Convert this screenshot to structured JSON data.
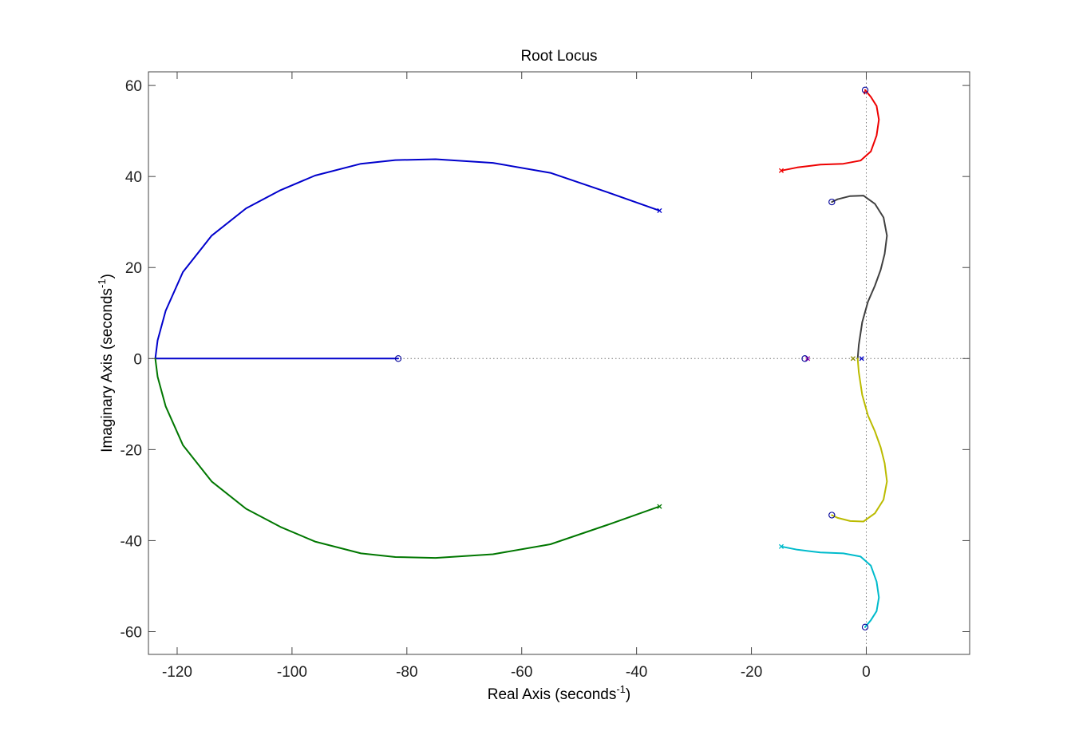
{
  "chart_data": {
    "type": "line",
    "title": "Root Locus",
    "xlabel": {
      "main": "Real Axis (seconds",
      "sup": "-1",
      "close": ")"
    },
    "ylabel": {
      "main": "Imaginary Axis (seconds",
      "sup": "-1",
      "close": ")"
    },
    "xlim": [
      -125,
      18
    ],
    "ylim": [
      -65,
      63
    ],
    "xticks": [
      -120,
      -100,
      -80,
      -60,
      -40,
      -20,
      0
    ],
    "yticks": [
      -60,
      -40,
      -20,
      0,
      20,
      40,
      60
    ],
    "xtick_labels": [
      "-120",
      "-100",
      "-80",
      "-60",
      "-40",
      "-20",
      "0"
    ],
    "ytick_labels": [
      "-60",
      "-40",
      "-20",
      "0",
      "20",
      "40",
      "60"
    ],
    "reference_lines": {
      "x0": true,
      "y0": true,
      "style": "dotted"
    },
    "series": [
      {
        "color": "#0000cc",
        "points": [
          [
            -36,
            32.5
          ],
          [
            -45,
            36.5
          ],
          [
            -55,
            40.8
          ],
          [
            -65,
            43
          ],
          [
            -75,
            43.8
          ],
          [
            -82,
            43.6
          ],
          [
            -88,
            42.8
          ],
          [
            -96,
            40.2
          ],
          [
            -102,
            37
          ],
          [
            -108,
            33
          ],
          [
            -114,
            27
          ],
          [
            -119,
            19
          ],
          [
            -122,
            10.5
          ],
          [
            -123.4,
            4
          ],
          [
            -123.8,
            0
          ]
        ]
      },
      {
        "color": "#0000cc",
        "points": [
          [
            -81.5,
            0
          ],
          [
            -123.8,
            0
          ]
        ]
      },
      {
        "color": "#007700",
        "points": [
          [
            -36,
            -32.5
          ],
          [
            -45,
            -36.5
          ],
          [
            -55,
            -40.8
          ],
          [
            -65,
            -43
          ],
          [
            -75,
            -43.8
          ],
          [
            -82,
            -43.6
          ],
          [
            -88,
            -42.8
          ],
          [
            -96,
            -40.2
          ],
          [
            -102,
            -37
          ],
          [
            -108,
            -33
          ],
          [
            -114,
            -27
          ],
          [
            -119,
            -19
          ],
          [
            -122,
            -10.5
          ],
          [
            -123.4,
            -4
          ],
          [
            -123.8,
            0
          ]
        ]
      },
      {
        "color": "#ee0000",
        "points": [
          [
            -14.8,
            41.3
          ],
          [
            -12,
            42
          ],
          [
            -8,
            42.6
          ],
          [
            -4,
            42.8
          ],
          [
            -1,
            43.5
          ],
          [
            0.8,
            45.5
          ],
          [
            1.8,
            49
          ],
          [
            2.2,
            52.5
          ],
          [
            1.8,
            55.5
          ],
          [
            0.8,
            57.5
          ],
          [
            -0.2,
            59
          ]
        ]
      },
      {
        "color": "#ee0000",
        "points": [
          [
            -0.3,
            58.6
          ],
          [
            -0.3,
            58.2
          ]
        ]
      },
      {
        "color": "#404040",
        "points": [
          [
            -1.5,
            0
          ],
          [
            -1.3,
            3
          ],
          [
            -0.7,
            8
          ],
          [
            0.3,
            12.5
          ],
          [
            1.5,
            16
          ],
          [
            2.5,
            19.5
          ],
          [
            3.2,
            23
          ],
          [
            3.6,
            27
          ],
          [
            3,
            31
          ],
          [
            1.5,
            34
          ],
          [
            -0.5,
            35.8
          ],
          [
            -2.8,
            35.7
          ],
          [
            -5,
            35
          ],
          [
            -6,
            34.4
          ]
        ]
      },
      {
        "color": "#bbbb00",
        "points": [
          [
            -1.5,
            0
          ],
          [
            -1.3,
            -3
          ],
          [
            -0.7,
            -8
          ],
          [
            0.3,
            -12.5
          ],
          [
            1.5,
            -16
          ],
          [
            2.5,
            -19.5
          ],
          [
            3.2,
            -23
          ],
          [
            3.6,
            -27
          ],
          [
            3,
            -31
          ],
          [
            1.5,
            -34
          ],
          [
            -0.5,
            -35.8
          ],
          [
            -2.8,
            -35.7
          ],
          [
            -5,
            -35
          ],
          [
            -6,
            -34.4
          ]
        ]
      },
      {
        "color": "#00bbcc",
        "points": [
          [
            -14.8,
            -41.3
          ],
          [
            -12,
            -42
          ],
          [
            -8,
            -42.6
          ],
          [
            -4,
            -42.8
          ],
          [
            -1,
            -43.5
          ],
          [
            0.8,
            -45.5
          ],
          [
            1.8,
            -49
          ],
          [
            2.2,
            -52.5
          ],
          [
            1.8,
            -55.5
          ],
          [
            0.8,
            -57.5
          ],
          [
            -0.2,
            -59
          ]
        ]
      }
    ],
    "poles": [
      {
        "x": -36,
        "y": 32.5,
        "color": "#0000cc"
      },
      {
        "x": -36,
        "y": -32.5,
        "color": "#007700"
      },
      {
        "x": -14.8,
        "y": 41.3,
        "color": "#ee0000"
      },
      {
        "x": -14.8,
        "y": -41.3,
        "color": "#00bbcc"
      },
      {
        "x": -10.2,
        "y": 0,
        "color": "#aa00aa"
      },
      {
        "x": -2.3,
        "y": 0,
        "color": "#888800"
      },
      {
        "x": -0.8,
        "y": 0,
        "color": "#0000cc"
      }
    ],
    "zeros": [
      {
        "x": -81.5,
        "y": 0
      },
      {
        "x": -10.7,
        "y": 0
      },
      {
        "x": -0.2,
        "y": 59
      },
      {
        "x": -0.2,
        "y": -59
      },
      {
        "x": -6,
        "y": 34.4
      },
      {
        "x": -6,
        "y": -34.4
      }
    ],
    "zero_color": "#000099"
  }
}
